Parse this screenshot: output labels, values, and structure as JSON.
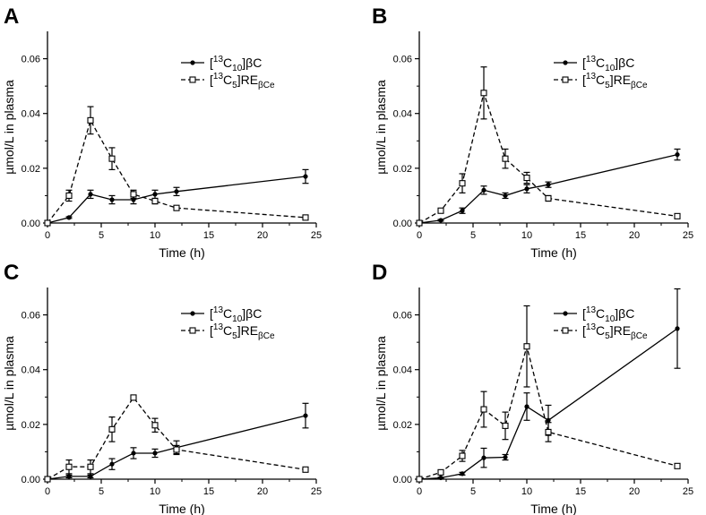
{
  "chart_data": [
    {
      "panel": "A",
      "type": "line",
      "xlabel": "Time (h)",
      "ylabel": "µmol/L in plasma",
      "xlim": [
        0,
        25
      ],
      "ylim": [
        0,
        0.07
      ],
      "xticks": [
        "0",
        "5",
        "10",
        "15",
        "20",
        "25"
      ],
      "yticks": [
        "0.00",
        "0.02",
        "0.04",
        "0.06"
      ],
      "series": [
        {
          "name": "[13C10]βC",
          "label_parts": [
            "[",
            "13",
            "C",
            "10",
            "]βC"
          ],
          "marker": "filled-circle",
          "line": "solid",
          "x": [
            0,
            2,
            4,
            6,
            8,
            10,
            12,
            24
          ],
          "y": [
            0,
            0.002,
            0.0105,
            0.0085,
            0.0085,
            0.0105,
            0.0115,
            0.017
          ],
          "err": [
            0,
            0.0003,
            0.0015,
            0.0015,
            0.0015,
            0.0015,
            0.0015,
            0.0025
          ]
        },
        {
          "name": "[13C5]REβCe",
          "label_parts": [
            "[",
            "13",
            "C",
            "5",
            "]RE",
            "βCe"
          ],
          "marker": "open-square",
          "line": "dashed",
          "x": [
            0,
            2,
            4,
            6,
            8,
            10,
            12,
            24
          ],
          "y": [
            0,
            0.01,
            0.0375,
            0.0235,
            0.0105,
            0.008,
            0.0055,
            0.002
          ],
          "err": [
            0,
            0.002,
            0.005,
            0.004,
            0.0015,
            0.001,
            0.0005,
            0.0003
          ]
        }
      ]
    },
    {
      "panel": "B",
      "type": "line",
      "xlabel": "Time (h)",
      "ylabel": "µmol/L in plasma",
      "xlim": [
        0,
        25
      ],
      "ylim": [
        0,
        0.07
      ],
      "xticks": [
        "0",
        "5",
        "10",
        "15",
        "20",
        "25"
      ],
      "yticks": [
        "0.00",
        "0.02",
        "0.04",
        "0.06"
      ],
      "series": [
        {
          "name": "[13C10]βC",
          "label_parts": [
            "[",
            "13",
            "C",
            "10",
            "]βC"
          ],
          "marker": "filled-circle",
          "line": "solid",
          "x": [
            0,
            2,
            4,
            6,
            8,
            10,
            12,
            24
          ],
          "y": [
            0,
            0.001,
            0.0045,
            0.012,
            0.01,
            0.0125,
            0.014,
            0.025
          ],
          "err": [
            0,
            0.0003,
            0.001,
            0.0015,
            0.001,
            0.0015,
            0.001,
            0.002
          ]
        },
        {
          "name": "[13C5]REβCe",
          "label_parts": [
            "[",
            "13",
            "C",
            "5",
            "]RE",
            "βCe"
          ],
          "marker": "open-square",
          "line": "dashed",
          "x": [
            0,
            2,
            4,
            6,
            8,
            10,
            12,
            24
          ],
          "y": [
            0,
            0.0045,
            0.0145,
            0.0475,
            0.0235,
            0.0165,
            0.009,
            0.0025
          ],
          "err": [
            0,
            0.0005,
            0.0035,
            0.0095,
            0.0035,
            0.002,
            0.001,
            0.0005
          ]
        }
      ]
    },
    {
      "panel": "C",
      "type": "line",
      "xlabel": "Time (h)",
      "ylabel": "µmol/L in plasma",
      "xlim": [
        0,
        25
      ],
      "ylim": [
        0,
        0.07
      ],
      "xticks": [
        "0",
        "5",
        "10",
        "15",
        "20",
        "25"
      ],
      "yticks": [
        "0.00",
        "0.02",
        "0.04",
        "0.06"
      ],
      "series": [
        {
          "name": "[13C10]βC",
          "label_parts": [
            "[",
            "13",
            "C",
            "10",
            "]βC"
          ],
          "marker": "filled-circle",
          "line": "solid",
          "x": [
            0,
            2,
            4,
            6,
            8,
            10,
            12,
            24
          ],
          "y": [
            0,
            0.001,
            0.001,
            0.0055,
            0.0095,
            0.0095,
            0.0115,
            0.0232
          ],
          "err": [
            0,
            0.0005,
            0.0005,
            0.002,
            0.002,
            0.0015,
            0.0025,
            0.0045
          ]
        },
        {
          "name": "[13C5]REβCe",
          "label_parts": [
            "[",
            "13",
            "C",
            "5",
            "]RE",
            "βCe"
          ],
          "marker": "open-square",
          "line": "dashed",
          "x": [
            0,
            2,
            4,
            6,
            8,
            10,
            12,
            24
          ],
          "y": [
            0,
            0.0045,
            0.0045,
            0.0182,
            0.0298,
            0.0197,
            0.0108,
            0.0035
          ],
          "err": [
            0,
            0.0025,
            0.0025,
            0.0045,
            0.0008,
            0.0025,
            0.0015,
            0.0003
          ]
        }
      ]
    },
    {
      "panel": "D",
      "type": "line",
      "xlabel": "Time (h)",
      "ylabel": "µmol/L in plasma",
      "xlim": [
        0,
        25
      ],
      "ylim": [
        0,
        0.07
      ],
      "xticks": [
        "0",
        "5",
        "10",
        "15",
        "20",
        "25"
      ],
      "yticks": [
        "0.00",
        "0.02",
        "0.04",
        "0.06"
      ],
      "series": [
        {
          "name": "[13C10]βC",
          "label_parts": [
            "[",
            "13",
            "C",
            "10",
            "]βC"
          ],
          "marker": "filled-circle",
          "line": "solid",
          "x": [
            0,
            2,
            4,
            6,
            8,
            10,
            12,
            24
          ],
          "y": [
            0,
            0.0005,
            0.002,
            0.0078,
            0.008,
            0.0265,
            0.0215,
            0.055
          ],
          "err": [
            0,
            0.0002,
            0.0005,
            0.0035,
            0.001,
            0.005,
            0.0055,
            0.0145
          ]
        },
        {
          "name": "[13C5]REβCe",
          "label_parts": [
            "[",
            "13",
            "C",
            "5",
            "]RE",
            "βCe"
          ],
          "marker": "open-square",
          "line": "dashed",
          "x": [
            0,
            2,
            4,
            6,
            8,
            10,
            12,
            24
          ],
          "y": [
            0,
            0.0025,
            0.0085,
            0.0255,
            0.0195,
            0.0485,
            0.0172,
            0.0048
          ],
          "err": [
            0,
            0.0005,
            0.002,
            0.0065,
            0.005,
            0.0148,
            0.0035,
            0.0005
          ]
        }
      ]
    }
  ]
}
